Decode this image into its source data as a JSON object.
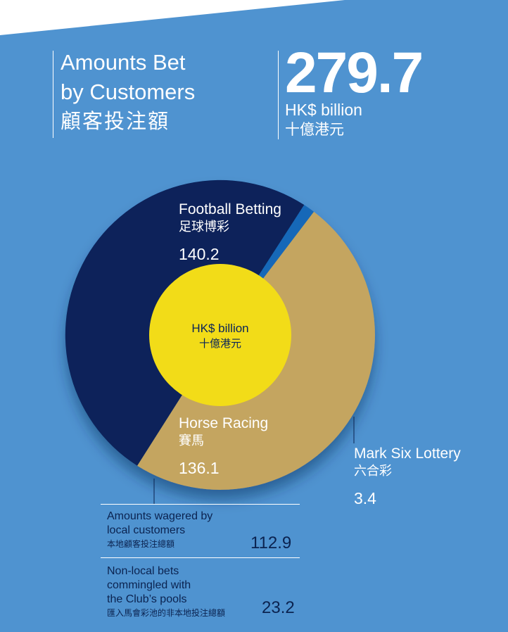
{
  "header": {
    "title_line1": "Amounts Bet",
    "title_line2": "by Customers",
    "title_zh": "顧客投注額",
    "total_value": "279.7",
    "total_unit": "HK$ billion",
    "total_unit_zh": "十億港元"
  },
  "colors": {
    "background": "#4f93d0",
    "football": "#08245a",
    "horse_racing": "#c4a560",
    "mark_six": "#1468b8",
    "center": "#f2dc18",
    "text_dark": "#0b2350"
  },
  "chart_data": {
    "type": "pie",
    "title": "Amounts Bet by Customers",
    "unit": "HK$ billion",
    "center_label": "HK$ billion",
    "center_label_zh": "十億港元",
    "slices": [
      {
        "name": "Football Betting",
        "name_zh": "足球博彩",
        "value": 140.2,
        "display": "140.2",
        "color": "#08245a"
      },
      {
        "name": "Mark Six Lottery",
        "name_zh": "六合彩",
        "value": 3.4,
        "display": "3.4",
        "color": "#1468b8"
      },
      {
        "name": "Horse Racing",
        "name_zh": "賽馬",
        "value": 136.1,
        "display": "136.1",
        "color": "#c4a560"
      }
    ],
    "horse_racing_breakdown": [
      {
        "label": "Amounts wagered by local customers",
        "label_lines": [
          "Amounts wagered by",
          "local customers"
        ],
        "label_zh": "本地顧客投注總額",
        "value": 112.9,
        "display": "112.9"
      },
      {
        "label": "Non-local bets commingled with the Club's pools",
        "label_lines": [
          "Non-local bets",
          "commingled with",
          "the Club’s pools"
        ],
        "label_zh": "匯入馬會彩池的非本地投注總額",
        "value": 23.2,
        "display": "23.2"
      }
    ]
  }
}
